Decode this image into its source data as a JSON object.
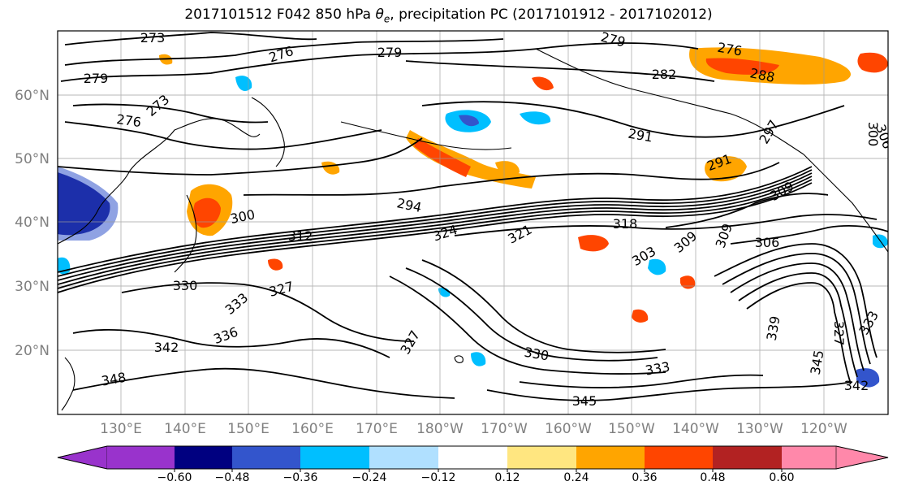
{
  "title_parts": [
    "2017101512 F042 850 hPa ",
    "θ",
    "e",
    ", precipitation PC (2017101912 - 2017102012)"
  ],
  "map": {
    "lat_ticks": [
      "60°N",
      "50°N",
      "40°N",
      "30°N",
      "20°N"
    ],
    "lon_ticks": [
      "130°E",
      "140°E",
      "150°E",
      "160°E",
      "170°E",
      "180°W",
      "170°W",
      "160°W",
      "150°W",
      "140°W",
      "130°W",
      "120°W"
    ],
    "contour_labels": [
      "273",
      "276",
      "279",
      "279",
      "279",
      "282",
      "276",
      "288",
      "273",
      "276",
      "291",
      "291",
      "297",
      "300",
      "294",
      "300",
      "312",
      "324",
      "318",
      "321",
      "309",
      "309",
      "306",
      "303",
      "309",
      "330",
      "327",
      "333",
      "336",
      "342",
      "348",
      "330",
      "327",
      "333",
      "345",
      "342",
      "339",
      "345",
      "306",
      "333",
      "327"
    ]
  },
  "colorbar": {
    "ticks": [
      "−0.60",
      "−0.48",
      "−0.36",
      "−0.24",
      "−0.12",
      "0.12",
      "0.24",
      "0.36",
      "0.48",
      "0.60"
    ],
    "colors": [
      "#9933cc",
      "#000080",
      "#3355cc",
      "#00bfff",
      "#b0e0ff",
      "#ffffff",
      "#ffe680",
      "#ffa500",
      "#ff4500",
      "#b22222",
      "#ff88aa"
    ]
  }
}
